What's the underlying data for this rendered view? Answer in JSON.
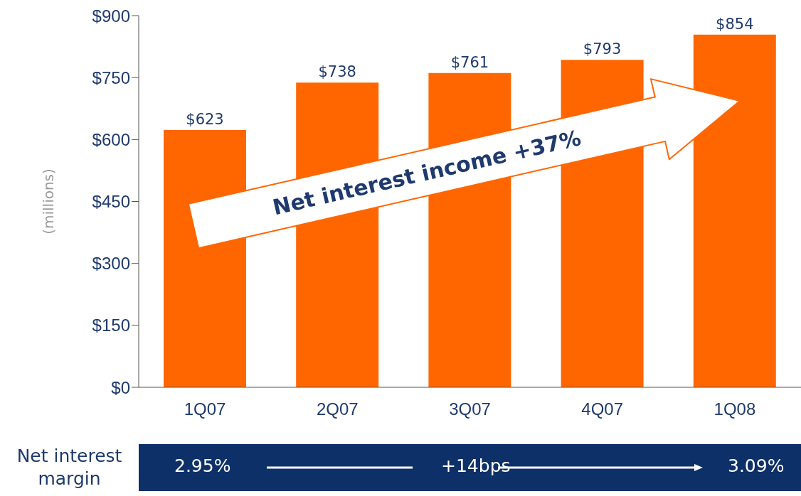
{
  "chart_data": {
    "type": "bar",
    "ylabel": "(millions)",
    "categories": [
      "1Q07",
      "2Q07",
      "3Q07",
      "4Q07",
      "1Q08"
    ],
    "values": [
      623,
      738,
      761,
      793,
      854
    ],
    "value_labels": [
      "$623",
      "$738",
      "$761",
      "$793",
      "$854"
    ],
    "color": "#ff6600",
    "ylim": [
      0,
      900
    ],
    "yticks": [
      {
        "value": 0,
        "label": "$0"
      },
      {
        "value": 150,
        "label": "$150"
      },
      {
        "value": 300,
        "label": "$300"
      },
      {
        "value": 450,
        "label": "$450"
      },
      {
        "value": 600,
        "label": "$600"
      },
      {
        "value": 750,
        "label": "$750"
      },
      {
        "value": 900,
        "label": "$900"
      }
    ],
    "grid": false,
    "legend": false,
    "annotations": [
      "Net interest income +37%",
      "Net interest margin",
      "2.95%",
      "+14bps",
      "3.09%"
    ]
  }
}
